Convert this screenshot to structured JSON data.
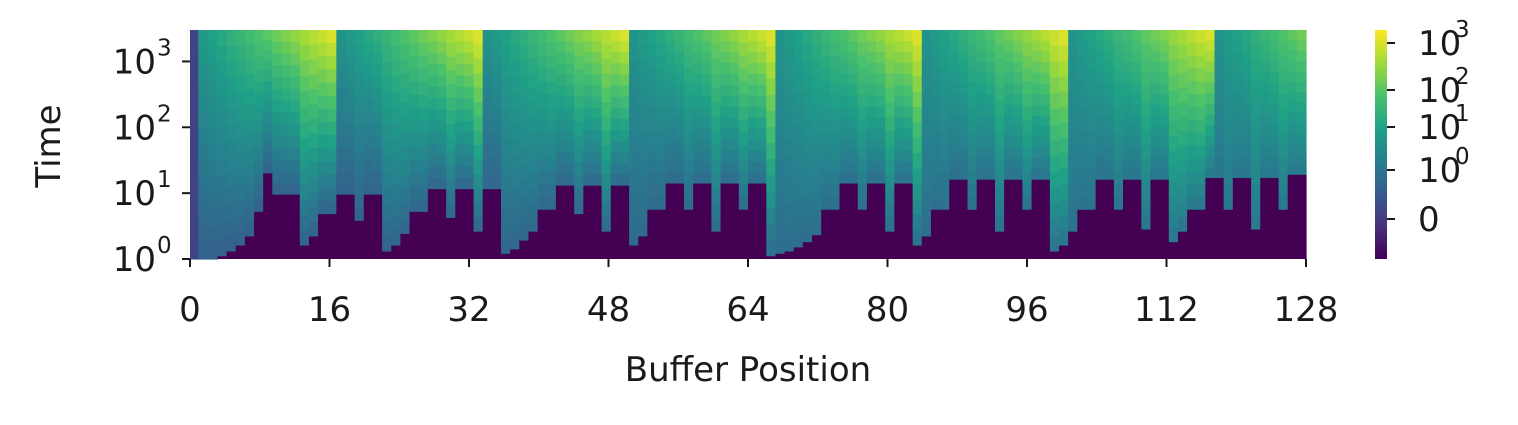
{
  "chart_data": {
    "type": "heatmap",
    "xlabel": "Buffer Position",
    "ylabel": "Time",
    "x_ticks": [
      "0",
      "16",
      "32",
      "48",
      "64",
      "80",
      "96",
      "112",
      "128"
    ],
    "x_tick_values": [
      0,
      16,
      32,
      48,
      64,
      80,
      96,
      112,
      128
    ],
    "y_scale": "log",
    "y_ticks": [
      {
        "base": "10",
        "exp": "0",
        "value": 1
      },
      {
        "base": "10",
        "exp": "1",
        "value": 10
      },
      {
        "base": "10",
        "exp": "2",
        "value": 100
      },
      {
        "base": "10",
        "exp": "3",
        "value": 1000
      }
    ],
    "ylim": [
      1,
      3000
    ],
    "xlim": [
      0,
      128
    ],
    "colormap": "viridis",
    "colorbar": {
      "scale": "symlog",
      "ticks": [
        {
          "base": "10",
          "exp": "3"
        },
        {
          "base": "10",
          "exp": "2"
        },
        {
          "base": "10",
          "exp": "1"
        },
        {
          "base": "10",
          "exp": "0"
        },
        {
          "base": "0",
          "exp": ""
        }
      ]
    },
    "baseline_heights": [
      1,
      1,
      1,
      1.1,
      1.3,
      1.6,
      2.2,
      5.2,
      20,
      9.5,
      9.5,
      9.5,
      1.6,
      2.2,
      4.8,
      4.8,
      9.5,
      9.5,
      3.8,
      9.5,
      9.5,
      1.3,
      1.6,
      2.4,
      5.2,
      5.2,
      11.5,
      11.5,
      4.2,
      11.5,
      11.5,
      2.6,
      11.5,
      11.5,
      1.2,
      1.4,
      1.9,
      2.6,
      5.6,
      5.6,
      13,
      13,
      4.8,
      13,
      13,
      2.6,
      13,
      13,
      1.6,
      2.2,
      5.6,
      5.6,
      14,
      14,
      5.6,
      14,
      14,
      2.6,
      14,
      14,
      5.6,
      14,
      14,
      1.1,
      1.2,
      1.3,
      1.5,
      1.8,
      2.3,
      5.6,
      5.6,
      14,
      14,
      5.6,
      14,
      14,
      2.6,
      14,
      14,
      1.6,
      2.2,
      5.6,
      5.6,
      16,
      16,
      5.6,
      16,
      16,
      2.6,
      16,
      16,
      5.6,
      16,
      16,
      1.3,
      1.6,
      2.6,
      5.6,
      5.6,
      16,
      16,
      5.6,
      16,
      16,
      2.8,
      16,
      16,
      1.8,
      2.6,
      5.6,
      5.6,
      17,
      17,
      5.6,
      17,
      17,
      2.8,
      17,
      17,
      5.6,
      19,
      19
    ],
    "color_stops": [
      "#440154",
      "#46327e",
      "#365c8d",
      "#277f8e",
      "#1fa187",
      "#4ac16d",
      "#a0da39",
      "#fde725"
    ]
  }
}
